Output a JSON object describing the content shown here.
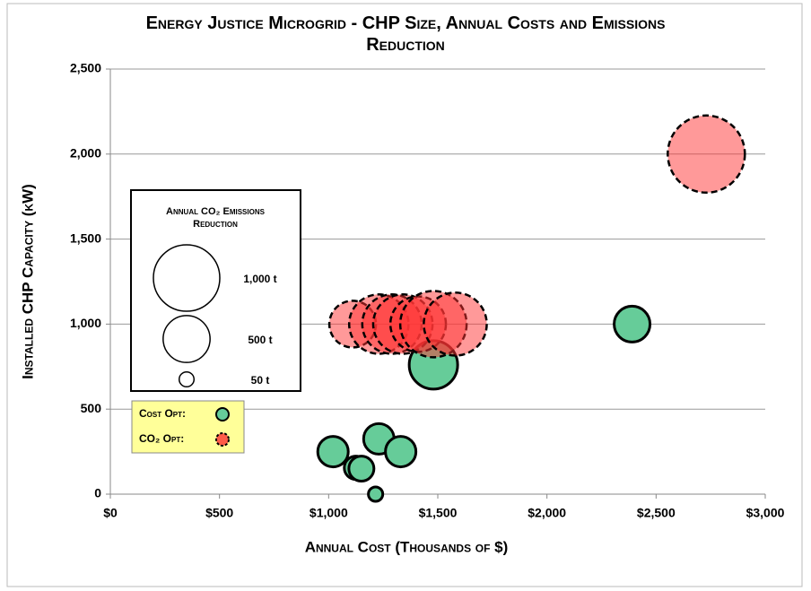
{
  "chart_data": {
    "type": "bubble",
    "title": "Energy Justice Microgrid - CHP Size, Annual Costs and Emissions Reduction",
    "x_label": "Annual Cost (Thousands of $)",
    "y_label": "Installed CHP Capacity (kW)",
    "xlim": [
      0,
      3000
    ],
    "xticks": [
      {
        "value": 0,
        "label": "$0"
      },
      {
        "value": 500,
        "label": "$500"
      },
      {
        "value": 1000,
        "label": "$1,000"
      },
      {
        "value": 1500,
        "label": "$1,500"
      },
      {
        "value": 2000,
        "label": "$2,000"
      },
      {
        "value": 2500,
        "label": "$2,500"
      },
      {
        "value": 3000,
        "label": "$3,000"
      }
    ],
    "ylim": [
      0,
      2500
    ],
    "yticks": [
      0,
      {
        "value": 500,
        "label": "500"
      },
      {
        "value": 1000,
        "label": "1,000"
      },
      {
        "value": 1500,
        "label": "1,500"
      },
      {
        "value": 2000,
        "label": "2,000"
      },
      {
        "value": 2500,
        "label": "2,500"
      }
    ],
    "grid": true,
    "size_legend": {
      "title": "Annual CO₂ Emissions Reduction",
      "values": [
        1000,
        500,
        50
      ],
      "labels": [
        "1,000 t",
        "500 t",
        "50 t"
      ]
    },
    "series": [
      {
        "name": "Cost Opt:",
        "color": "#66cc99",
        "x": [
          1020,
          1125,
          1150,
          1215,
          1230,
          1330,
          1480,
          2390
        ],
        "values": [
          250,
          155,
          150,
          0,
          325,
          250,
          760,
          1000
        ],
        "sizes": [
          211,
          123,
          143,
          47,
          211,
          211,
          532,
          292
        ]
      },
      {
        "name": "CO₂ Opt:",
        "color": "#ff3333",
        "x": [
          1110,
          1230,
          1290,
          1340,
          1410,
          1480,
          1580,
          2730
        ],
        "values": [
          1000,
          1000,
          1000,
          1000,
          1000,
          1000,
          1000,
          2000
        ],
        "sizes": [
          494,
          800,
          800,
          800,
          700,
          1000,
          900,
          1350
        ]
      }
    ]
  }
}
